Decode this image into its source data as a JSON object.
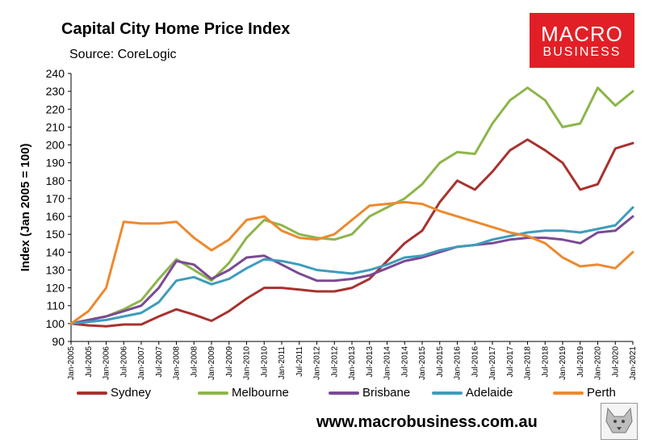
{
  "header": {
    "title": "Capital City Home Price Index",
    "subtitle": "Source: CoreLogic"
  },
  "logo": {
    "line1": "MACRO",
    "line2": "BUSINESS"
  },
  "footer": {
    "url": "www.macrobusiness.com.au"
  },
  "colors": {
    "Sydney": "#a8322f",
    "Melbourne": "#8db54a",
    "Brisbane": "#7a4a94",
    "Adelaide": "#3e9cbb",
    "Perth": "#ec8a30",
    "logo_bg": "#e21f26"
  },
  "chart_data": {
    "type": "line",
    "ylabel": "Index (Jan 2005 = 100)",
    "xlabel": "",
    "ylim": [
      90,
      240
    ],
    "yticks": [
      90,
      100,
      110,
      120,
      130,
      140,
      150,
      160,
      170,
      180,
      190,
      200,
      210,
      220,
      230,
      240
    ],
    "x_range": [
      "Jan-2005",
      "Jan-2021"
    ],
    "xtick_labels": [
      "Jan-2005",
      "Jul-2005",
      "Jan-2006",
      "Jul-2006",
      "Jan-2007",
      "Jul-2007",
      "Jan-2008",
      "Jul-2008",
      "Jan-2009",
      "Jul-2009",
      "Jan-2010",
      "Jul-2010",
      "Jan-2011",
      "Jul-2011",
      "Jan-2012",
      "Jul-2012",
      "Jan-2013",
      "Jul-2013",
      "Jan-2014",
      "Jul-2014",
      "Jan-2015",
      "Jul-2015",
      "Jan-2016",
      "Jul-2016",
      "Jan-2017",
      "Jul-2017",
      "Jan-2018",
      "Jul-2018",
      "Jan-2019",
      "Jul-2019",
      "Jan-2020",
      "Jul-2020",
      "Jan-2021"
    ],
    "grid": false,
    "legend_position": "bottom",
    "series": [
      {
        "name": "Sydney",
        "x": [
          "Jan-2005",
          "Jul-2005",
          "Jan-2006",
          "Jul-2006",
          "Jan-2007",
          "Jul-2007",
          "Jan-2008",
          "Jul-2008",
          "Jan-2009",
          "Jul-2009",
          "Jan-2010",
          "Jul-2010",
          "Jan-2011",
          "Jul-2011",
          "Jan-2012",
          "Jul-2012",
          "Jan-2013",
          "Jul-2013",
          "Jan-2014",
          "Jul-2014",
          "Jan-2015",
          "Jul-2015",
          "Jan-2016",
          "Jul-2016",
          "Jan-2017",
          "Jul-2017",
          "Jan-2018",
          "Jul-2018",
          "Jan-2019",
          "Jul-2019",
          "Jan-2020",
          "Jul-2020",
          "Jan-2021"
        ],
        "values": [
          100,
          99,
          98.5,
          99.5,
          99.5,
          104,
          108,
          105,
          101.5,
          107,
          114,
          120,
          120,
          119,
          118,
          118,
          120,
          125,
          135,
          145,
          152,
          168,
          180,
          175,
          185,
          197,
          203,
          197,
          190,
          175,
          178,
          198,
          201
        ]
      },
      {
        "name": "Melbourne",
        "x": [
          "Jan-2005",
          "Jul-2005",
          "Jan-2006",
          "Jul-2006",
          "Jan-2007",
          "Jul-2007",
          "Jan-2008",
          "Jul-2008",
          "Jan-2009",
          "Jul-2009",
          "Jan-2010",
          "Jul-2010",
          "Jan-2011",
          "Jul-2011",
          "Jan-2012",
          "Jul-2012",
          "Jan-2013",
          "Jul-2013",
          "Jan-2014",
          "Jul-2014",
          "Jan-2015",
          "Jul-2015",
          "Jan-2016",
          "Jul-2016",
          "Jan-2017",
          "Jul-2017",
          "Jan-2018",
          "Jul-2018",
          "Jan-2019",
          "Jul-2019",
          "Jan-2020",
          "Jul-2020",
          "Jan-2021"
        ],
        "values": [
          100,
          102,
          104,
          108,
          113,
          125,
          136,
          130,
          124,
          134,
          148,
          158,
          155,
          150,
          148,
          147,
          150,
          160,
          165,
          170,
          178,
          190,
          196,
          195,
          212,
          225,
          232,
          225,
          210,
          212,
          232,
          222,
          230
        ]
      },
      {
        "name": "Brisbane",
        "x": [
          "Jan-2005",
          "Jul-2005",
          "Jan-2006",
          "Jul-2006",
          "Jan-2007",
          "Jul-2007",
          "Jan-2008",
          "Jul-2008",
          "Jan-2009",
          "Jul-2009",
          "Jan-2010",
          "Jul-2010",
          "Jan-2011",
          "Jul-2011",
          "Jan-2012",
          "Jul-2012",
          "Jan-2013",
          "Jul-2013",
          "Jan-2014",
          "Jul-2014",
          "Jan-2015",
          "Jul-2015",
          "Jan-2016",
          "Jul-2016",
          "Jan-2017",
          "Jul-2017",
          "Jan-2018",
          "Jul-2018",
          "Jan-2019",
          "Jul-2019",
          "Jan-2020",
          "Jul-2020",
          "Jan-2021"
        ],
        "values": [
          100,
          102,
          104,
          107,
          110,
          120,
          135,
          133,
          125,
          130,
          137,
          138,
          133,
          128,
          124,
          124,
          125,
          127,
          131,
          135,
          137,
          140,
          143,
          144,
          145,
          147,
          148,
          148,
          147,
          145,
          151,
          152,
          160
        ]
      },
      {
        "name": "Adelaide",
        "x": [
          "Jan-2005",
          "Jul-2005",
          "Jan-2006",
          "Jul-2006",
          "Jan-2007",
          "Jul-2007",
          "Jan-2008",
          "Jul-2008",
          "Jan-2009",
          "Jul-2009",
          "Jan-2010",
          "Jul-2010",
          "Jan-2011",
          "Jul-2011",
          "Jan-2012",
          "Jul-2012",
          "Jan-2013",
          "Jul-2013",
          "Jan-2014",
          "Jul-2014",
          "Jan-2015",
          "Jul-2015",
          "Jan-2016",
          "Jul-2016",
          "Jan-2017",
          "Jul-2017",
          "Jan-2018",
          "Jul-2018",
          "Jan-2019",
          "Jul-2019",
          "Jan-2020",
          "Jul-2020",
          "Jan-2021"
        ],
        "values": [
          100,
          101,
          102,
          104,
          106,
          112,
          124,
          126,
          122,
          125,
          131,
          136,
          135,
          133,
          130,
          129,
          128,
          130,
          133,
          137,
          138,
          141,
          143,
          144,
          147,
          149,
          151,
          152,
          152,
          151,
          153,
          155,
          165
        ]
      },
      {
        "name": "Perth",
        "x": [
          "Jan-2005",
          "Jul-2005",
          "Jan-2006",
          "Jul-2006",
          "Jan-2007",
          "Jul-2007",
          "Jan-2008",
          "Jul-2008",
          "Jan-2009",
          "Jul-2009",
          "Jan-2010",
          "Jul-2010",
          "Jan-2011",
          "Jul-2011",
          "Jan-2012",
          "Jul-2012",
          "Jan-2013",
          "Jul-2013",
          "Jan-2014",
          "Jul-2014",
          "Jan-2015",
          "Jul-2015",
          "Jan-2016",
          "Jul-2016",
          "Jan-2017",
          "Jul-2017",
          "Jan-2018",
          "Jul-2018",
          "Jan-2019",
          "Jul-2019",
          "Jan-2020",
          "Jul-2020",
          "Jan-2021"
        ],
        "values": [
          100,
          107,
          120,
          157,
          156,
          156,
          157,
          148,
          141,
          147,
          158,
          160,
          152,
          148,
          147,
          150,
          158,
          166,
          167,
          168,
          167,
          163,
          160,
          157,
          154,
          151,
          149,
          145,
          137,
          132,
          133,
          131,
          140
        ]
      }
    ]
  }
}
